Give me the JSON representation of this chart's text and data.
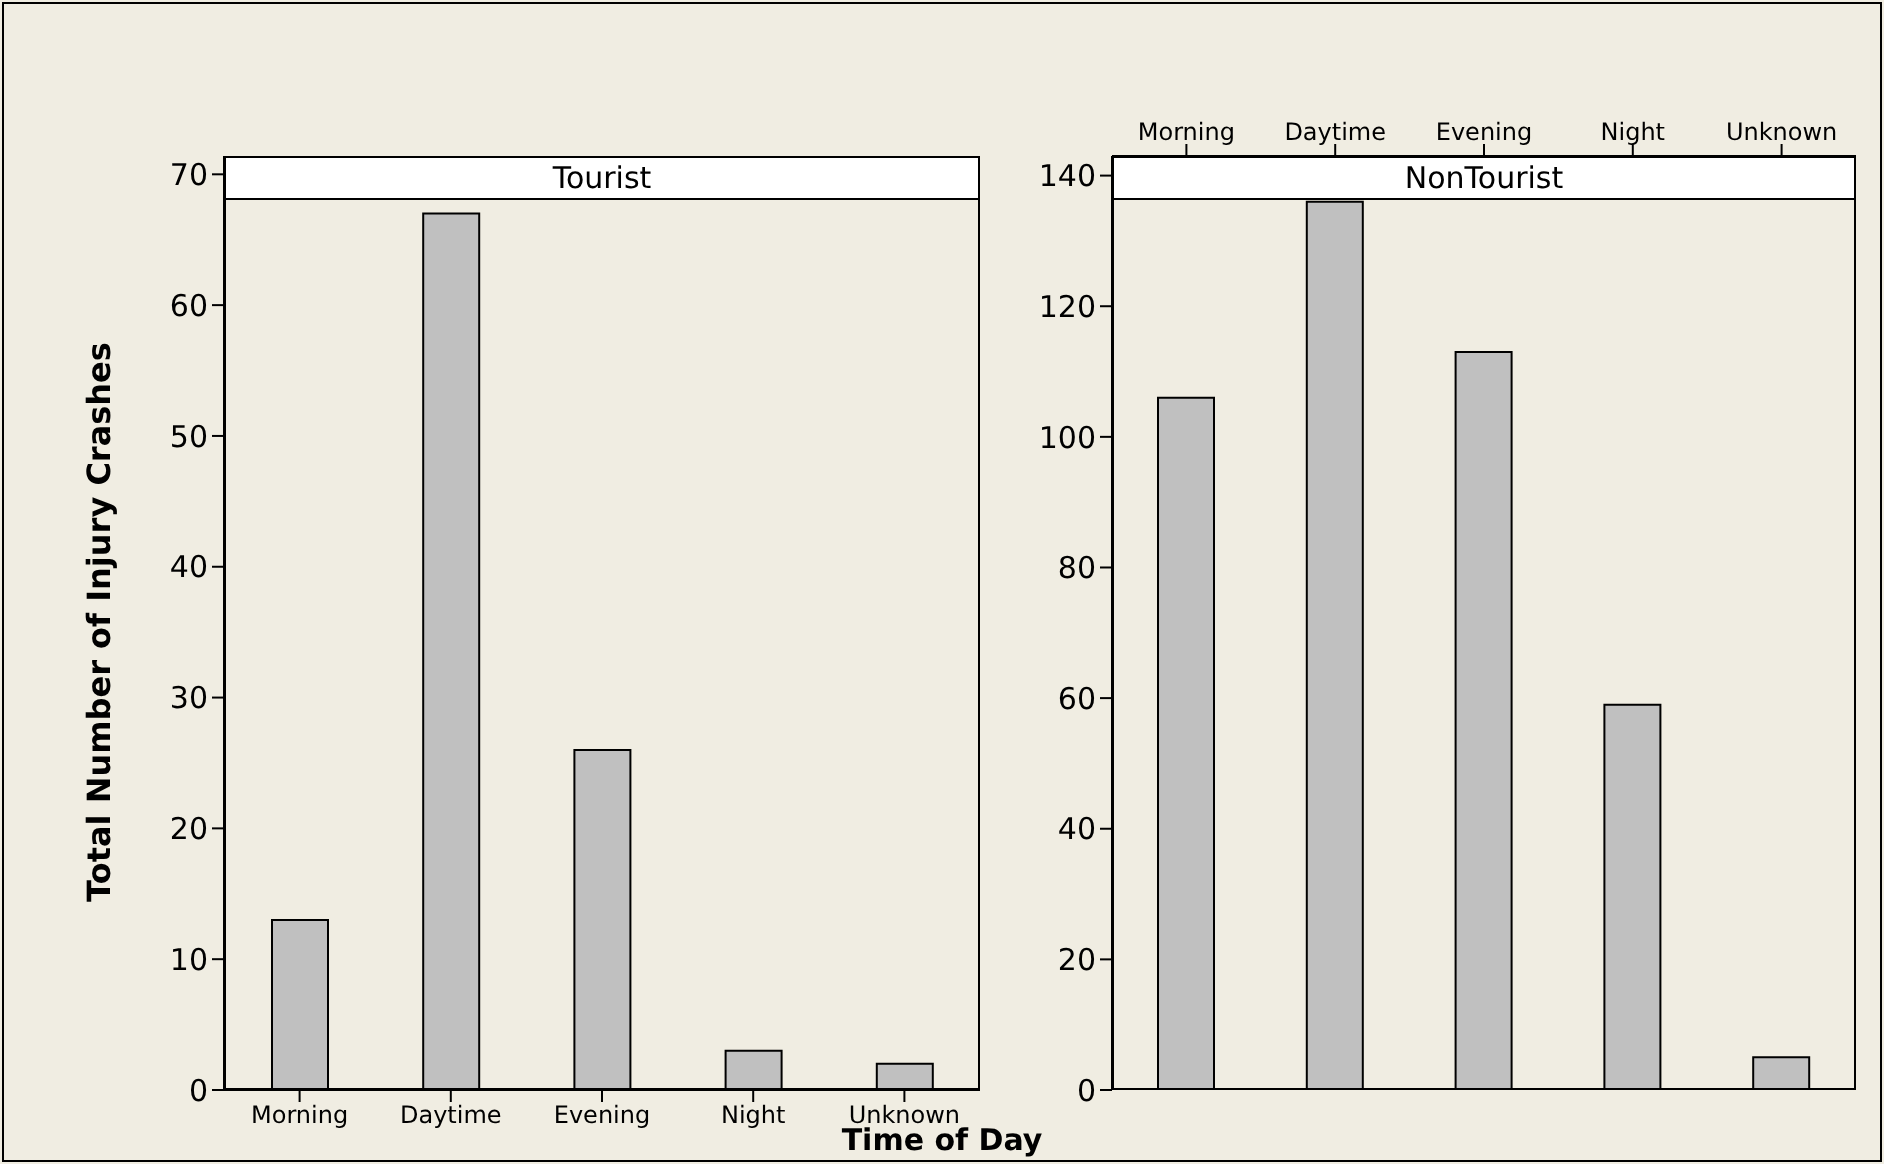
{
  "chart_data": [
    {
      "type": "bar",
      "title": "Tourist",
      "ylabel": "Total Number of Injury Crashes",
      "xlabel": "Time of Day",
      "categories": [
        "Morning",
        "Daytime",
        "Evening",
        "Night",
        "Unknown"
      ],
      "values": [
        13,
        67,
        26,
        3,
        2
      ],
      "color": "#c0c0c0",
      "ylim": [
        0,
        71.4
      ],
      "yticks": [
        0,
        10,
        20,
        30,
        40,
        50,
        60,
        70
      ],
      "grid": false,
      "legend": false
    },
    {
      "type": "bar",
      "title": "NonTourist",
      "categories": [
        "Morning",
        "Daytime",
        "Evening",
        "Night",
        "Unknown"
      ],
      "values": [
        106,
        136,
        113,
        59,
        5
      ],
      "color": "#c0c0c0",
      "ylim": [
        0,
        143
      ],
      "yticks": [
        0,
        20,
        40,
        60,
        80,
        100,
        120,
        140
      ],
      "grid": false,
      "legend": false
    }
  ]
}
